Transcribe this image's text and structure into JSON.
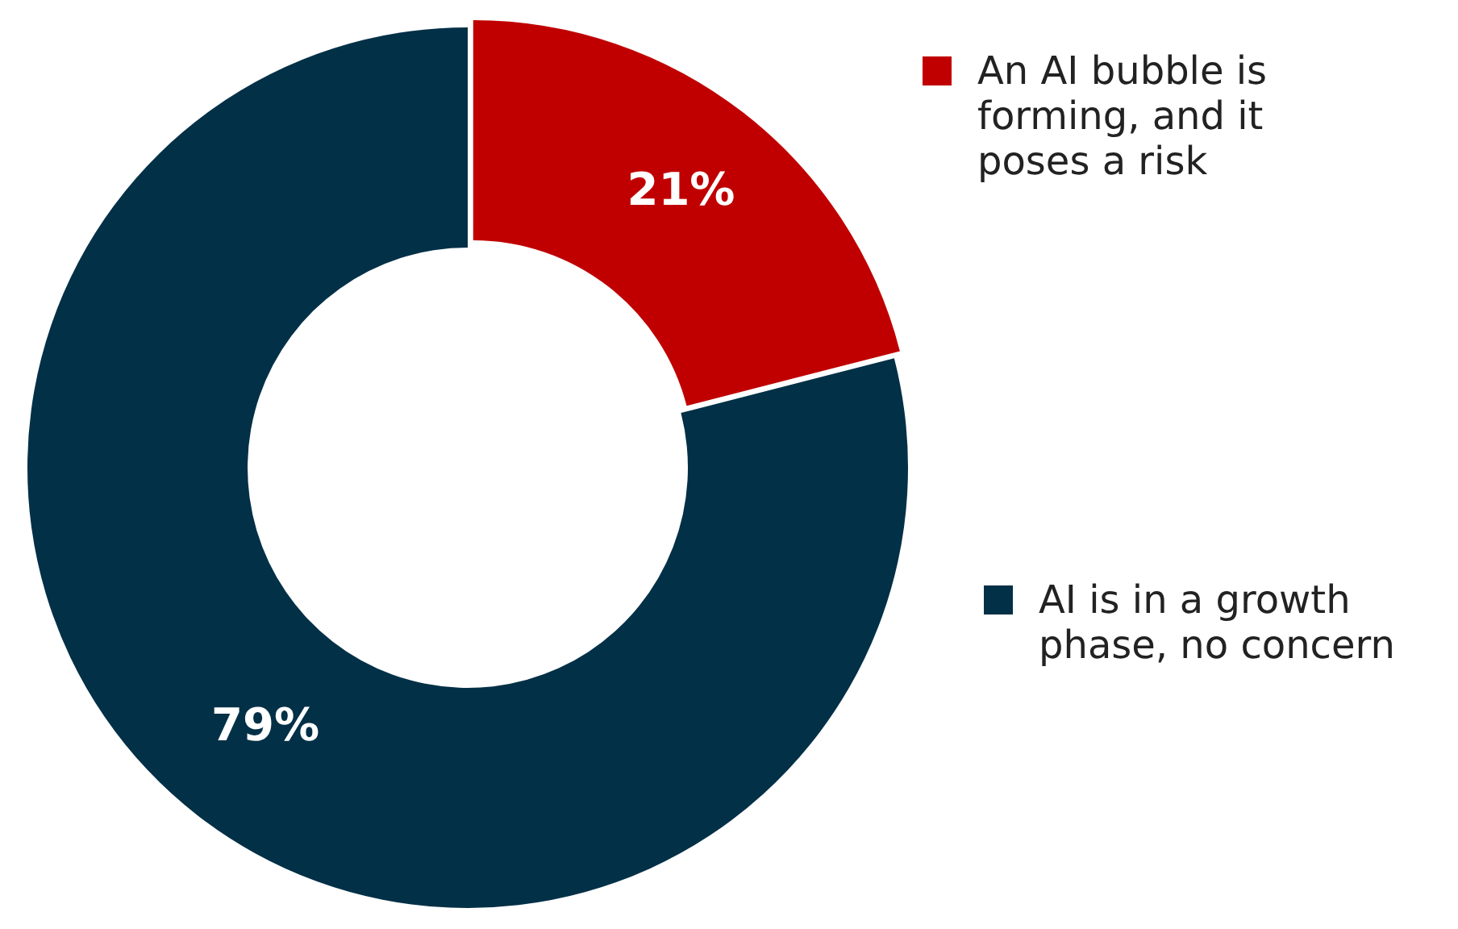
{
  "chart_data": {
    "type": "donut",
    "categories": [
      "An AI bubble is forming, and it poses a risk",
      "AI is in a growth phase, no concern"
    ],
    "values": [
      21,
      79
    ],
    "colors": [
      "#c00000",
      "#023047"
    ],
    "value_labels": [
      "21%",
      "79%"
    ],
    "legend": "right"
  }
}
